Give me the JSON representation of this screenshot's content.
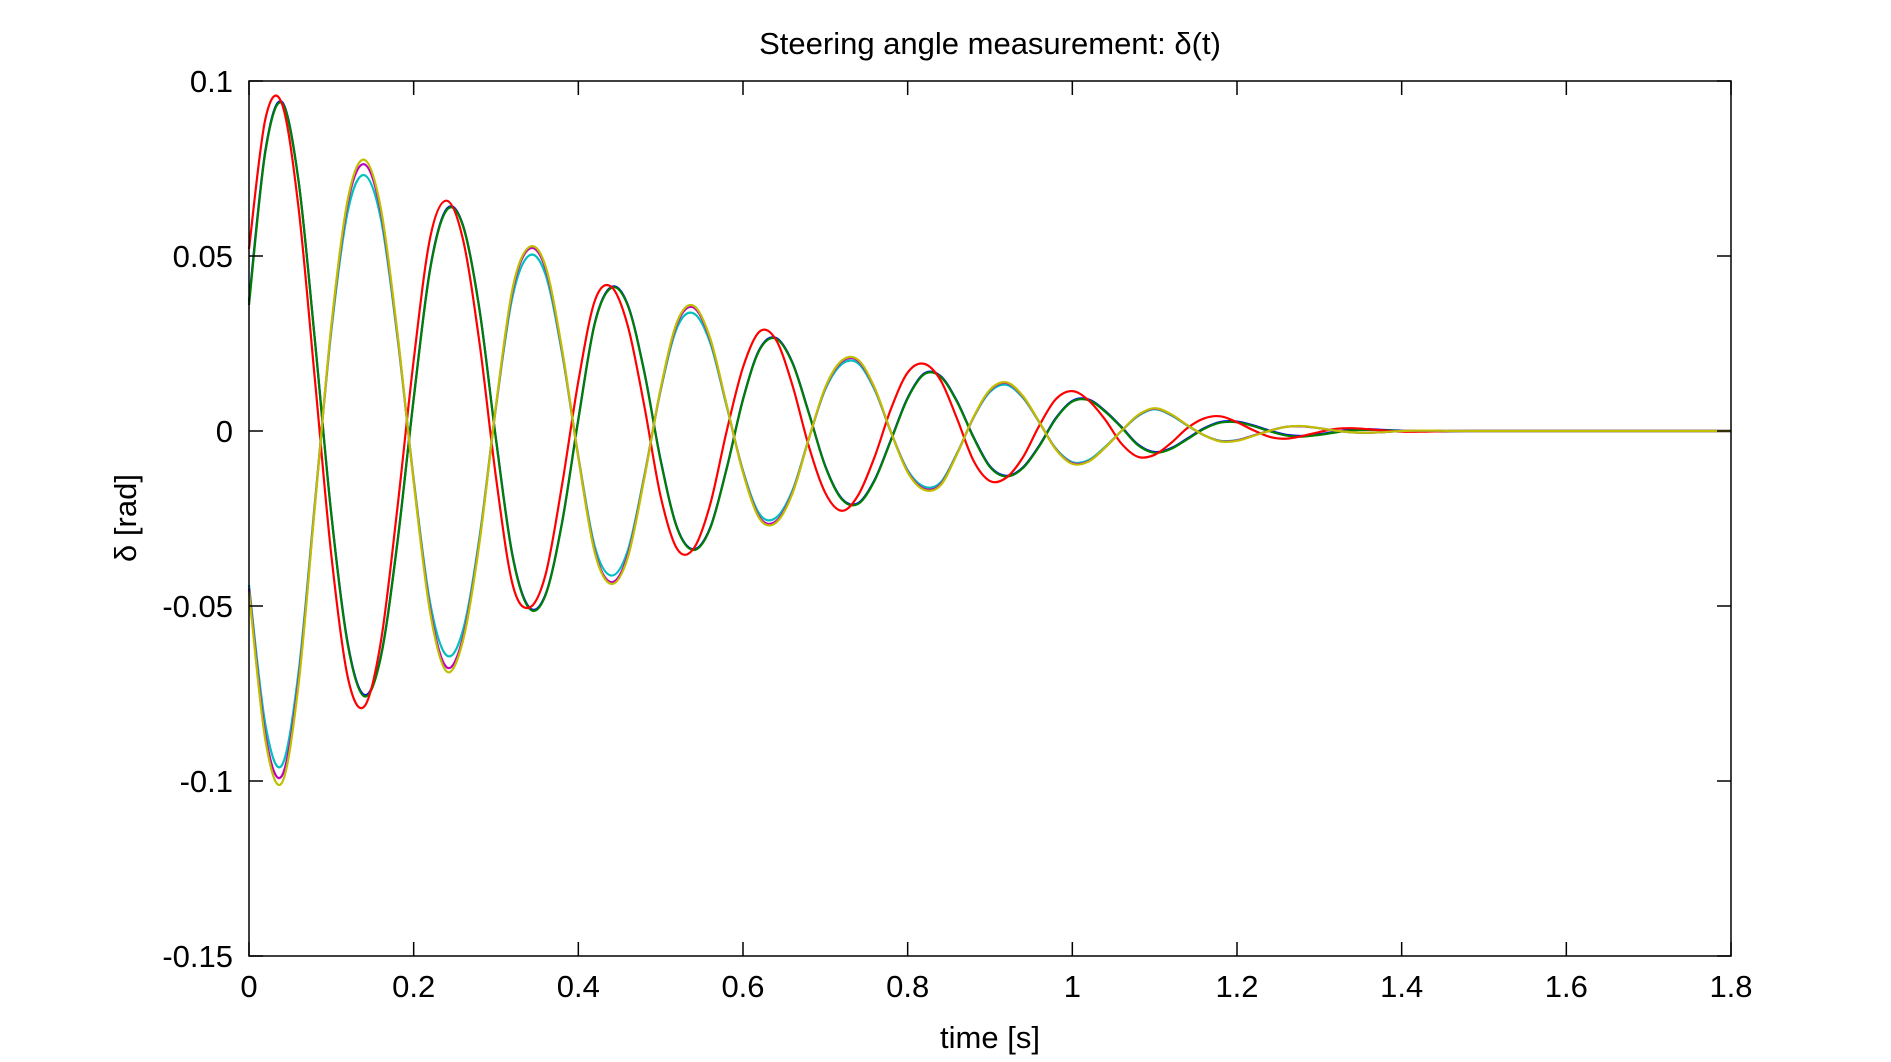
{
  "chart_data": {
    "type": "line",
    "title": "Steering angle measurement: δ(t)",
    "xlabel": "time [s]",
    "ylabel": "δ [rad]",
    "xlim": [
      0,
      1.8
    ],
    "ylim": [
      -0.15,
      0.1
    ],
    "grid": false,
    "legend": "none",
    "x_ticks": [
      0,
      0.2,
      0.4,
      0.6,
      0.8,
      1,
      1.2,
      1.4,
      1.6,
      1.8
    ],
    "x_tick_labels": [
      "0",
      "0.2",
      "0.4",
      "0.6",
      "0.8",
      "1",
      "1.2",
      "1.4",
      "1.6",
      "1.8"
    ],
    "y_ticks": [
      -0.15,
      -0.1,
      -0.05,
      0,
      0.05,
      0.1
    ],
    "y_tick_labels": [
      "-0.15",
      "-0.1",
      "-0.05",
      "0",
      "0.05",
      "0.1"
    ],
    "x": [
      0,
      0.02,
      0.04,
      0.06,
      0.08,
      0.1,
      0.12,
      0.14,
      0.16,
      0.18,
      0.2,
      0.22,
      0.24,
      0.26,
      0.28,
      0.3,
      0.32,
      0.34,
      0.36,
      0.38,
      0.4,
      0.42,
      0.44,
      0.46,
      0.48,
      0.5,
      0.52,
      0.54,
      0.56,
      0.58,
      0.6,
      0.62,
      0.64,
      0.66,
      0.68,
      0.7,
      0.72,
      0.74,
      0.76,
      0.78,
      0.8,
      0.82,
      0.84,
      0.86,
      0.88,
      0.9,
      0.92,
      0.94,
      0.96,
      0.98,
      1.0,
      1.02,
      1.04,
      1.06,
      1.08,
      1.1,
      1.12,
      1.14,
      1.16,
      1.18,
      1.2,
      1.22,
      1.24,
      1.26,
      1.28,
      1.3,
      1.32,
      1.34,
      1.36,
      1.38,
      1.4,
      1.42,
      1.44,
      1.46,
      1.48,
      1.5,
      1.52,
      1.54,
      1.56,
      1.58,
      1.6,
      1.62,
      1.64,
      1.66,
      1.68,
      1.7,
      1.72,
      1.74,
      1.76,
      1.78,
      1.8
    ],
    "series": [
      {
        "color": "#0000ff",
        "values": [
          0.037,
          0.0803,
          0.094,
          0.0718,
          0.0261,
          -0.0237,
          -0.0607,
          -0.0754,
          -0.0645,
          -0.0322,
          0.0093,
          0.0464,
          0.0634,
          0.0587,
          0.0347,
          -0.0023,
          -0.0354,
          -0.0503,
          -0.0468,
          -0.0264,
          0.0034,
          0.0309,
          0.0411,
          0.0361,
          0.0171,
          -0.0083,
          -0.0276,
          -0.0338,
          -0.0277,
          -0.0108,
          0.0091,
          0.0233,
          0.0266,
          0.0196,
          0.0052,
          -0.01,
          -0.0193,
          -0.0206,
          -0.0139,
          -0.0023,
          0.0095,
          0.0164,
          0.0157,
          0.0085,
          -0.0017,
          -0.0101,
          -0.0128,
          -0.0104,
          -0.0041,
          0.0037,
          0.0086,
          0.009,
          0.0057,
          0.0011,
          -0.0039,
          -0.006,
          -0.0049,
          -0.0021,
          0.0008,
          0.0026,
          0.0027,
          0.0016,
          0.0001,
          -0.0011,
          -0.0014,
          -0.0009,
          -0.0002,
          0.0004,
          0.0005,
          0.0003,
          0.0001,
          -0.0001,
          -0.0001,
          -0.0001,
          0.0,
          0.0,
          0.0,
          0.0,
          0.0,
          0.0,
          0.0,
          0.0,
          0.0,
          0.0,
          0.0,
          0.0,
          0.0,
          0.0,
          0.0,
          0.0,
          0.0
        ]
      },
      {
        "color": "#008000",
        "values": [
          0.036,
          0.0799,
          0.0937,
          0.0717,
          0.0259,
          -0.024,
          -0.0611,
          -0.0758,
          -0.0648,
          -0.0325,
          0.009,
          0.0461,
          0.0631,
          0.0585,
          0.0345,
          -0.0025,
          -0.0357,
          -0.0506,
          -0.047,
          -0.0266,
          0.0032,
          0.0307,
          0.0409,
          0.0359,
          0.0169,
          -0.0085,
          -0.0278,
          -0.034,
          -0.0279,
          -0.011,
          0.0089,
          0.0231,
          0.0264,
          0.0194,
          0.005,
          -0.0102,
          -0.0195,
          -0.0208,
          -0.0141,
          -0.0025,
          0.0093,
          0.0162,
          0.0155,
          0.0083,
          -0.0019,
          -0.0103,
          -0.013,
          -0.0106,
          -0.0043,
          0.0035,
          0.0084,
          0.0088,
          0.0055,
          0.0009,
          -0.0041,
          -0.0062,
          -0.0051,
          -0.0023,
          0.0006,
          0.0024,
          0.0025,
          0.0014,
          -0.0001,
          -0.0013,
          -0.0016,
          -0.0011,
          -0.0004,
          0.0002,
          0.0003,
          0.0002,
          0.0,
          -0.0001,
          -0.0001,
          0.0,
          0.0,
          0.0,
          0.0,
          0.0,
          0.0,
          0.0,
          0.0,
          0.0,
          0.0,
          0.0,
          0.0,
          0.0,
          0.0,
          0.0,
          0.0,
          0.0,
          0.0
        ]
      },
      {
        "color": "#ff0000",
        "values": [
          0.052,
          0.0893,
          0.0935,
          0.0641,
          0.0148,
          -0.0355,
          -0.0704,
          -0.0787,
          -0.0604,
          -0.0225,
          0.0202,
          0.0552,
          0.0658,
          0.0546,
          0.0251,
          -0.0133,
          -0.0437,
          -0.0505,
          -0.0412,
          -0.0157,
          0.0142,
          0.0372,
          0.0412,
          0.0301,
          0.0073,
          -0.0187,
          -0.0337,
          -0.0336,
          -0.0211,
          -0.0002,
          0.0182,
          0.0284,
          0.0261,
          0.0131,
          -0.0044,
          -0.0177,
          -0.0228,
          -0.0183,
          -0.0073,
          0.0065,
          0.0167,
          0.0192,
          0.0145,
          0.0035,
          -0.0085,
          -0.0143,
          -0.0133,
          -0.0075,
          0.0016,
          0.0091,
          0.0114,
          0.0087,
          0.0032,
          -0.0037,
          -0.0074,
          -0.0068,
          -0.0034,
          0.0009,
          0.0036,
          0.0042,
          0.0025,
          0.0002,
          -0.0017,
          -0.0022,
          -0.0014,
          -0.0003,
          0.0006,
          0.0008,
          0.0005,
          0.0001,
          -0.0002,
          -0.0002,
          -0.0001,
          0.0,
          0.0,
          0.0,
          0.0,
          0.0,
          0.0,
          0.0,
          0.0,
          0.0,
          0.0,
          0.0,
          0.0,
          0.0,
          0.0,
          0.0,
          0.0,
          0.0,
          0.0
        ]
      },
      {
        "color": "#00bfbf",
        "values": [
          -0.044,
          -0.084,
          -0.0955,
          -0.0693,
          -0.0205,
          0.0286,
          0.0628,
          0.0731,
          0.0608,
          0.0273,
          -0.0137,
          -0.0491,
          -0.0641,
          -0.0568,
          -0.0302,
          0.0069,
          0.0383,
          0.0501,
          0.0448,
          0.0225,
          -0.0072,
          -0.033,
          -0.0413,
          -0.0342,
          -0.0129,
          0.0116,
          0.0296,
          0.0336,
          0.0253,
          0.0072,
          -0.0113,
          -0.0237,
          -0.0248,
          -0.017,
          -0.0021,
          0.0119,
          0.0191,
          0.0193,
          0.0117,
          -0.0005,
          -0.0112,
          -0.0159,
          -0.0147,
          -0.0063,
          0.0038,
          0.0112,
          0.0132,
          0.0095,
          0.0024,
          -0.005,
          -0.0089,
          -0.0083,
          -0.0045,
          0.0001,
          0.0043,
          0.0062,
          0.0045,
          0.0015,
          -0.0012,
          -0.0028,
          -0.0026,
          -0.0013,
          0.0001,
          0.0012,
          0.0013,
          0.0008,
          0.0001,
          -0.0004,
          -0.0005,
          -0.0003,
          0.0,
          0.0001,
          0.0001,
          0.0,
          0.0,
          0.0,
          0.0,
          0.0,
          0.0,
          0.0,
          0.0,
          0.0,
          0.0,
          0.0,
          0.0,
          0.0,
          0.0,
          0.0,
          0.0,
          0.0,
          0.0
        ]
      },
      {
        "color": "#bf00bf",
        "values": [
          -0.045,
          -0.087,
          -0.0985,
          -0.0715,
          -0.0212,
          0.0296,
          0.0652,
          0.0762,
          0.0628,
          0.0281,
          -0.0142,
          -0.0509,
          -0.0675,
          -0.0589,
          -0.0313,
          0.0071,
          0.0399,
          0.052,
          0.0465,
          0.0233,
          -0.0075,
          -0.0343,
          -0.0432,
          -0.0355,
          -0.0134,
          0.012,
          0.0307,
          0.0353,
          0.0262,
          0.0075,
          -0.0117,
          -0.0246,
          -0.0258,
          -0.0176,
          -0.0022,
          0.0123,
          0.0198,
          0.02,
          0.0121,
          -0.0005,
          -0.0116,
          -0.0165,
          -0.0152,
          -0.0065,
          0.0039,
          0.0116,
          0.0137,
          0.0098,
          0.0025,
          -0.0052,
          -0.0092,
          -0.0086,
          -0.0047,
          0.0001,
          0.0045,
          0.0064,
          0.0047,
          0.0016,
          -0.0012,
          -0.0029,
          -0.0027,
          -0.0013,
          0.0001,
          0.0012,
          0.0013,
          0.0008,
          0.0001,
          -0.0004,
          -0.0005,
          -0.0003,
          0.0,
          0.0001,
          0.0001,
          0.0,
          0.0,
          0.0,
          0.0,
          0.0,
          0.0,
          0.0,
          0.0,
          0.0,
          0.0,
          0.0,
          0.0,
          0.0,
          0.0,
          0.0,
          0.0,
          0.0,
          0.0
        ]
      },
      {
        "color": "#bfbf00",
        "values": [
          -0.046,
          -0.0885,
          -0.1005,
          -0.0728,
          -0.0216,
          0.0301,
          0.0662,
          0.0775,
          0.0638,
          0.0286,
          -0.0145,
          -0.0518,
          -0.0687,
          -0.0598,
          -0.0318,
          0.0073,
          0.0406,
          0.0525,
          0.0472,
          0.0237,
          -0.0076,
          -0.0348,
          -0.0437,
          -0.0362,
          -0.0137,
          0.0122,
          0.0312,
          0.0358,
          0.0266,
          0.0076,
          -0.0119,
          -0.025,
          -0.0262,
          -0.0179,
          -0.0022,
          0.0125,
          0.0201,
          0.0203,
          0.0123,
          -0.0005,
          -0.0118,
          -0.0168,
          -0.0155,
          -0.0066,
          0.004,
          0.0118,
          0.0139,
          0.01,
          0.0025,
          -0.0053,
          -0.0094,
          -0.0087,
          -0.0047,
          0.0001,
          0.0046,
          0.0065,
          0.0048,
          0.0016,
          -0.0012,
          -0.003,
          -0.0028,
          -0.0014,
          0.0001,
          0.0012,
          0.0014,
          0.0008,
          0.0001,
          -0.0004,
          -0.0005,
          -0.0003,
          0.0,
          0.0001,
          0.0001,
          0.0,
          0.0,
          0.0,
          0.0,
          0.0,
          0.0,
          0.0,
          0.0,
          0.0,
          0.0,
          0.0,
          0.0,
          0.0,
          0.0,
          0.0,
          0.0,
          0.0,
          0.0
        ]
      }
    ]
  }
}
